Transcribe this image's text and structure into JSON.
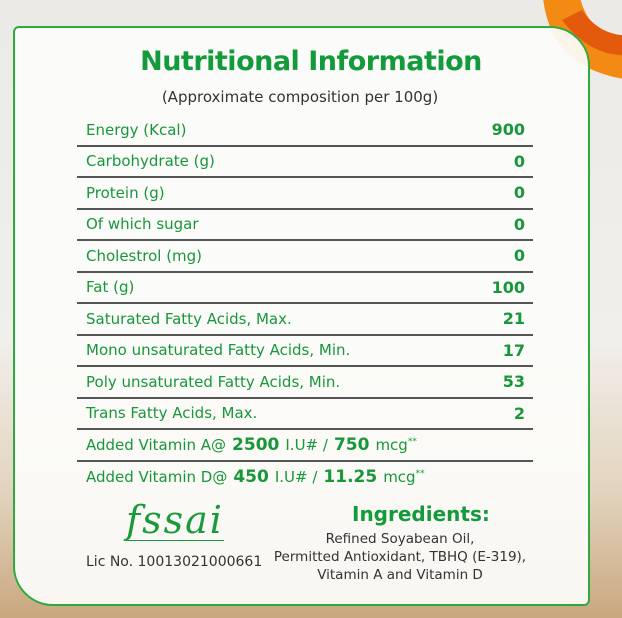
{
  "header": {
    "title": "Nutritional Information",
    "subtitle": "(Approximate composition per 100g)"
  },
  "rows": [
    {
      "label": "Energy (Kcal)",
      "value": "900"
    },
    {
      "label": "Carbohydrate (g)",
      "value": "0"
    },
    {
      "label": "Protein (g)",
      "value": "0"
    },
    {
      "label": "Of which sugar",
      "value": "0"
    },
    {
      "label": "Cholestrol (mg)",
      "value": "0"
    },
    {
      "label": "Fat (g)",
      "value": "100"
    },
    {
      "label": "Saturated Fatty Acids, Max.",
      "value": "21"
    },
    {
      "label": "Mono unsaturated Fatty Acids, Min.",
      "value": "17"
    },
    {
      "label": "Poly unsaturated Fatty Acids, Min.",
      "value": "53"
    },
    {
      "label": "Trans Fatty Acids, Max.",
      "value": "2"
    }
  ],
  "vitamins": [
    {
      "label": "Added Vitamin A@",
      "iu": "2500",
      "iu_unit": "I.U# /",
      "mcg": "750",
      "mcg_unit": "mcg",
      "mark": "**"
    },
    {
      "label": "Added Vitamin D@",
      "iu": "450",
      "iu_unit": "I.U# /",
      "mcg": "11.25",
      "mcg_unit": "mcg",
      "mark": "**"
    }
  ],
  "footer": {
    "logo_text": "fssai",
    "license": "Lic No. 10013021000661",
    "ingredients_title": "Ingredients:",
    "ingredients": [
      "Refined Soyabean Oil,",
      "Permitted Antioxidant, TBHQ (E-319),",
      "Vitamin A and Vitamin D"
    ]
  },
  "colors": {
    "accent": "#139a3a",
    "orange": "#f07c12"
  }
}
